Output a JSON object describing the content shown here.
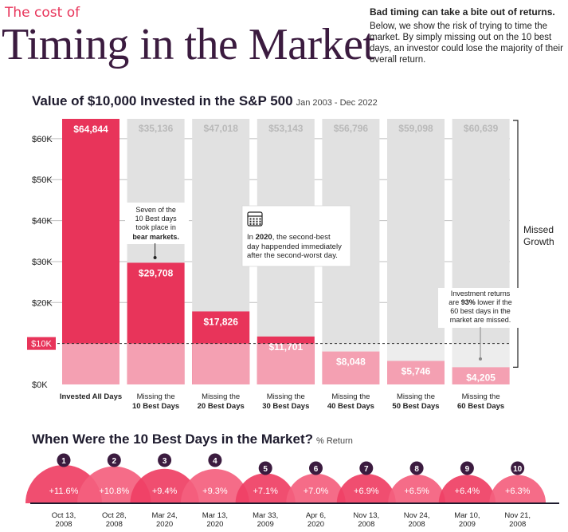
{
  "header": {
    "kicker": "The cost of",
    "headline": "Timing in the Market",
    "intro_title": "Bad timing can take a bite out of returns.",
    "intro_body": "Below, we show the risk of trying to time the market. By simply missing out on the 10 best days, an investor could lose the majority of their overall return."
  },
  "colors": {
    "accent": "#e8345a",
    "accent_light": "#f4a0b2",
    "grey": "#e1e1e1",
    "grey_light": "#ededed",
    "dark": "#1e1b2e",
    "headline": "#3b1b3f"
  },
  "chart_data": [
    {
      "type": "bar",
      "title": "Value of $10,000 Invested in the S&P 500",
      "subtitle": "Jan 2003 - Dec 2022",
      "categories": [
        "Invested All Days",
        "Missing the 10 Best Days",
        "Missing the 20 Best Days",
        "Missing the 30 Best Days",
        "Missing the 40 Best Days",
        "Missing the 50 Best Days",
        "Missing the 60 Best Days"
      ],
      "category_lines": [
        [
          "Invested All Days"
        ],
        [
          "Missing the",
          "10 Best Days"
        ],
        [
          "Missing the",
          "20 Best Days"
        ],
        [
          "Missing the",
          "30 Best Days"
        ],
        [
          "Missing the",
          "40 Best Days"
        ],
        [
          "Missing the",
          "50 Best Days"
        ],
        [
          "Missing the",
          "60 Best Days"
        ]
      ],
      "series": [
        {
          "name": "",
          "values": [
            64844,
            29708,
            17826,
            11701,
            8048,
            5746,
            4205
          ]
        },
        {
          "name": "Missed Growth",
          "values": [
            0,
            35136,
            47018,
            53143,
            56796,
            59098,
            60639
          ]
        }
      ],
      "value_labels": [
        "$64,844",
        "$29,708",
        "$17,826",
        "$11,701",
        "$8,048",
        "$5,746",
        "$4,205"
      ],
      "missed_labels": [
        "",
        "$35,136",
        "$47,018",
        "$53,143",
        "$56,796",
        "$59,098",
        "$60,639"
      ],
      "ylim": [
        0,
        64844
      ],
      "yticks": [
        0,
        10000,
        20000,
        30000,
        40000,
        50000,
        60000
      ],
      "ytick_labels": [
        "$0K",
        "$10K",
        "$20K",
        "$30K",
        "$40K",
        "$50K",
        "$60K"
      ],
      "reference_line": {
        "value": 10000,
        "label": "$10K"
      },
      "bracket_label": [
        "Missed",
        "Growth"
      ],
      "grid": true,
      "annotations": [
        {
          "target": "Missing the 10 Best Days",
          "lines": [
            "Seven of the",
            "10 Best days",
            "took place in"
          ],
          "bold_line": "bear markets."
        },
        {
          "target": "Missing the 30 Best Days",
          "icon": "calendar-icon",
          "bold": "2020",
          "before": "In ",
          "after": ", the second-best",
          "lines": [
            "day happended immediately",
            "after the second-worst day."
          ]
        },
        {
          "target": "Missing the 60 Best Days",
          "lines": [
            "Investment returns"
          ],
          "line2_before": "are ",
          "line2_bold": "93%",
          "line2_after": " lower if the",
          "lines_after": [
            "60 best days in the",
            "market are missed."
          ]
        }
      ]
    },
    {
      "type": "bar",
      "title": "When Were the 10 Best Days in the Market?",
      "subtitle": "% Return",
      "categories": [
        "1",
        "2",
        "3",
        "4",
        "5",
        "6",
        "7",
        "8",
        "9",
        "10"
      ],
      "values": [
        11.6,
        10.8,
        9.4,
        9.3,
        7.1,
        7.0,
        6.9,
        6.5,
        6.4,
        6.3
      ],
      "value_labels": [
        "+11.6%",
        "+10.8%",
        "+9.4%",
        "+9.3%",
        "+7.1%",
        "+7.0%",
        "+6.9%",
        "+6.5%",
        "+6.4%",
        "+6.3%"
      ],
      "dates": [
        [
          "Oct 13,",
          "2008"
        ],
        [
          "Oct 28,",
          "2008"
        ],
        [
          "Mar 24,",
          "2020"
        ],
        [
          "Mar 13,",
          "2020"
        ],
        [
          "Mar 33,",
          "2009"
        ],
        [
          "Apr 6,",
          "2020"
        ],
        [
          "Nov 13,",
          "2008"
        ],
        [
          "Nov 24,",
          "2008"
        ],
        [
          "Mar 10,",
          "2009"
        ],
        [
          "Nov 21,",
          "2008"
        ]
      ]
    }
  ]
}
